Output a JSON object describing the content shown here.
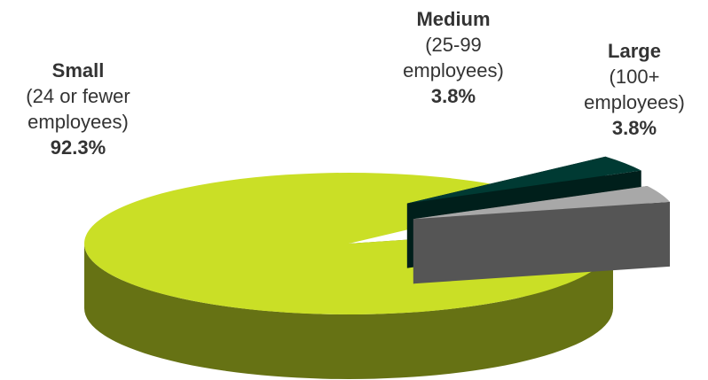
{
  "chart_data": {
    "type": "pie",
    "title": "",
    "style": "3d-exploded",
    "slices": [
      {
        "name": "Small",
        "desc_line1": "(24 or fewer",
        "desc_line2": "employees)",
        "value": 92.3,
        "value_label": "92.3%",
        "color": "#cadf26",
        "side_color": "#667214"
      },
      {
        "name": "Medium",
        "desc_line1": "(25-99",
        "desc_line2": "employees)",
        "value": 3.8,
        "value_label": "3.8%",
        "color": "#003a33",
        "side_color": "#001f1b"
      },
      {
        "name": "Large",
        "desc_line1": "(100+",
        "desc_line2": "employees)",
        "value": 3.8,
        "value_label": "3.8%",
        "color": "#a8a8a8",
        "side_color": "#555555"
      }
    ]
  }
}
